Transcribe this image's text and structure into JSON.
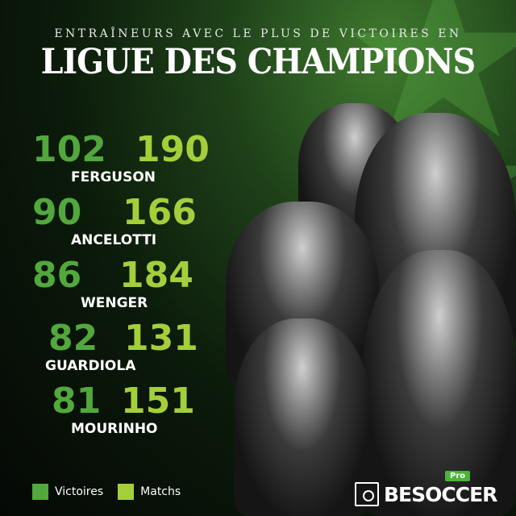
{
  "header": {
    "subtitle": "ENTRAÎNEURS AVEC LE PLUS DE VICTOIRES EN",
    "title": "LIGUE DES CHAMPIONS"
  },
  "colors": {
    "victoires": "#52a83c",
    "matchs": "#a4cf3a"
  },
  "coaches": [
    {
      "name": "FERGUSON",
      "victoires": "102",
      "matchs": "190"
    },
    {
      "name": "ANCELOTTI",
      "victoires": "90",
      "matchs": "166"
    },
    {
      "name": "WENGER",
      "victoires": "86",
      "matchs": "184"
    },
    {
      "name": "GUARDIOLA",
      "victoires": "82",
      "matchs": "131"
    },
    {
      "name": "MOURINHO",
      "victoires": "81",
      "matchs": "151"
    }
  ],
  "legend": {
    "victoires": "Victoires",
    "matchs": "Matchs"
  },
  "logo": {
    "text": "BESOCCER",
    "badge": "Pro"
  }
}
